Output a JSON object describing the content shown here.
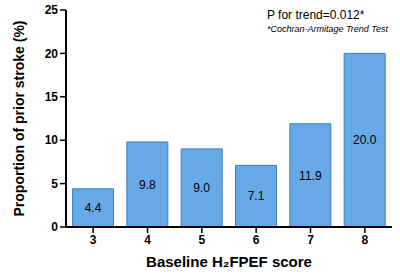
{
  "chart_data": {
    "type": "bar",
    "categories": [
      "3",
      "4",
      "5",
      "6",
      "7",
      "8"
    ],
    "values": [
      4.4,
      9.8,
      9.0,
      7.1,
      11.9,
      20.0
    ],
    "value_labels": [
      "4.4",
      "9.8",
      "9.0",
      "7.1",
      "11.9",
      "20.0"
    ],
    "color": "#66a9e6",
    "x_label": "Baseline H₂FPEF score",
    "y_label": "Proportion of prior stroke (%)",
    "ylim": [
      0,
      25
    ],
    "yticks": [
      0,
      5,
      10,
      15,
      20,
      25
    ],
    "grid": false,
    "data_labels": true,
    "annotations": [
      "P for trend=0.012*",
      "*Cochran-Armitage Trend Test"
    ]
  }
}
